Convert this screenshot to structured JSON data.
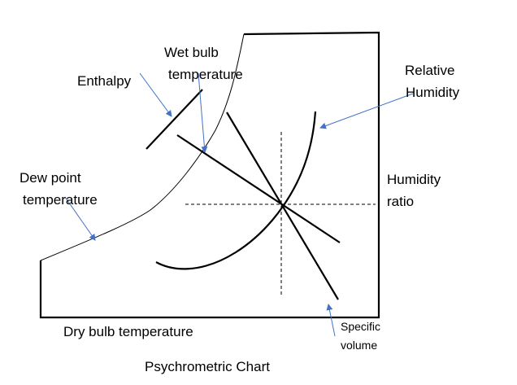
{
  "labels": {
    "enthalpy": "Enthalpy",
    "wet_bulb_1": "Wet bulb",
    "wet_bulb_2": "temperature",
    "relative_humidity_1": "Relative",
    "relative_humidity_2": "Humidity",
    "dew_point_1": "Dew point",
    "dew_point_2": "temperature",
    "humidity_ratio_1": "Humidity",
    "humidity_ratio_2": "ratio",
    "dry_bulb": "Dry bulb temperature",
    "specific_volume_1": "Specific",
    "specific_volume_2": "volume",
    "caption": "Psychrometric Chart"
  },
  "colors": {
    "lines": "#000000",
    "arrows": "#4472c4"
  }
}
